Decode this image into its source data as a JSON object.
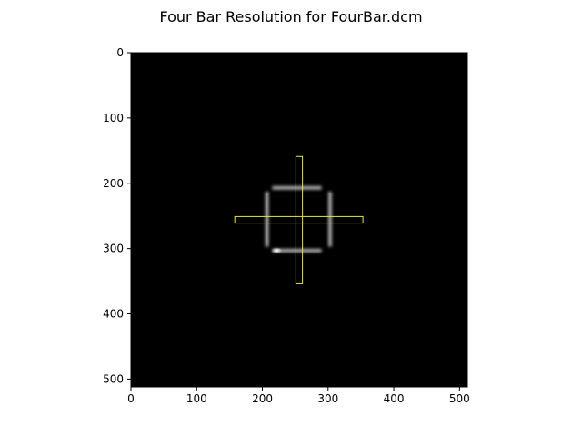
{
  "chart_data": {
    "type": "heatmap",
    "title": "Four Bar Resolution for FourBar.dcm",
    "image_size": [
      512,
      512
    ],
    "xlim": [
      0,
      512
    ],
    "ylim": [
      512,
      0
    ],
    "x_ticks": [
      0,
      100,
      200,
      300,
      400,
      500
    ],
    "y_ticks": [
      0,
      100,
      200,
      300,
      400,
      500
    ],
    "x_tick_labels": [
      "0",
      "100",
      "200",
      "300",
      "400",
      "500"
    ],
    "y_tick_labels": [
      "0",
      "100",
      "200",
      "300",
      "400",
      "500"
    ],
    "background_color": "#000000",
    "roi_color": "#e6e63a",
    "bars": [
      {
        "orientation": "horizontal",
        "x0": 215,
        "x1": 290,
        "y": 207
      },
      {
        "orientation": "horizontal",
        "x0": 215,
        "x1": 290,
        "y": 303
      },
      {
        "orientation": "vertical",
        "x": 207,
        "y0": 213,
        "y1": 297
      },
      {
        "orientation": "vertical",
        "x": 303,
        "y0": 213,
        "y1": 297
      }
    ],
    "rois": [
      {
        "x": 251,
        "y": 159,
        "width": 10,
        "height": 195
      },
      {
        "x": 158,
        "y": 251,
        "width": 195,
        "height": 10
      }
    ]
  }
}
